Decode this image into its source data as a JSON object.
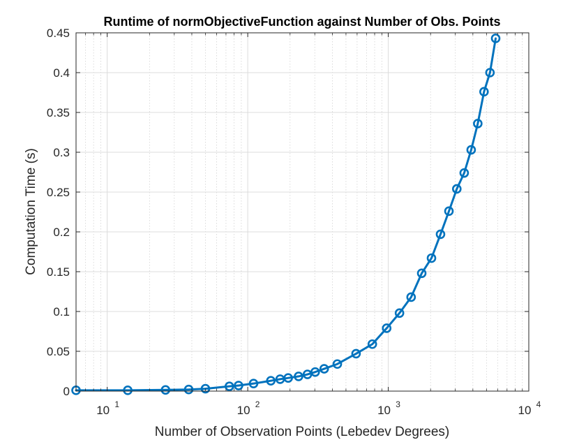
{
  "chart_data": {
    "type": "line",
    "title": "Runtime of normObjectiveFunction against Number of Obs. Points",
    "xlabel": "Number of Observation Points (Lebedev Degrees)",
    "ylabel": "Computation Time (s)",
    "x_scale": "log",
    "xlim": [
      6,
      10000
    ],
    "ylim": [
      0,
      0.45
    ],
    "x_ticks": [
      10,
      100,
      1000,
      10000
    ],
    "x_tick_labels": [
      {
        "base": "10",
        "exp": "1"
      },
      {
        "base": "10",
        "exp": "2"
      },
      {
        "base": "10",
        "exp": "3"
      },
      {
        "base": "10",
        "exp": "4"
      }
    ],
    "y_ticks": [
      0,
      0.05,
      0.1,
      0.15,
      0.2,
      0.25,
      0.3,
      0.35,
      0.4,
      0.45
    ],
    "y_tick_labels": [
      "0",
      "0.05",
      "0.1",
      "0.15",
      "0.2",
      "0.25",
      "0.3",
      "0.35",
      "0.4",
      "0.45"
    ],
    "grid": true,
    "minor_grid": true,
    "series": [
      {
        "color": "#0072BD",
        "marker": "circle",
        "x": [
          6,
          14,
          26,
          38,
          50,
          74,
          86,
          110,
          146,
          170,
          194,
          230,
          266,
          302,
          350,
          434,
          590,
          770,
          974,
          1202,
          1454,
          1730,
          2030,
          2354,
          2702,
          3074,
          3470,
          3890,
          4334,
          4802,
          5294,
          5810
        ],
        "y": [
          0.001,
          0.001,
          0.0015,
          0.002,
          0.003,
          0.006,
          0.007,
          0.0095,
          0.013,
          0.015,
          0.0165,
          0.0185,
          0.021,
          0.024,
          0.028,
          0.034,
          0.047,
          0.059,
          0.079,
          0.098,
          0.118,
          0.148,
          0.167,
          0.197,
          0.226,
          0.254,
          0.274,
          0.303,
          0.336,
          0.376,
          0.4,
          0.443
        ]
      }
    ]
  }
}
